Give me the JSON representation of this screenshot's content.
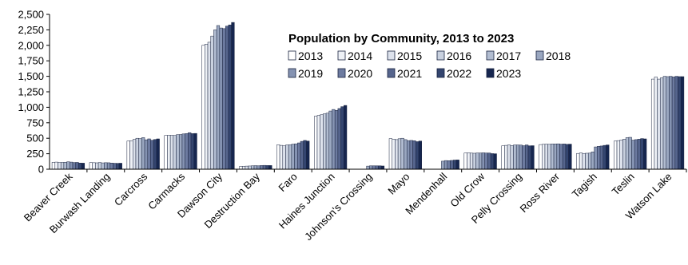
{
  "chart_data": {
    "type": "bar",
    "title": "Population by Community, 2013 to 2023",
    "xlabel": "",
    "ylabel": "",
    "ylim": [
      0,
      2500
    ],
    "yticks": [
      0,
      250,
      500,
      750,
      1000,
      1250,
      1500,
      1750,
      2000,
      2250,
      2500
    ],
    "ytick_labels": [
      "0",
      "250",
      "500",
      "750",
      "1,000",
      "1,250",
      "1,500",
      "1,750",
      "2,000",
      "2,250",
      "2,500"
    ],
    "grid": false,
    "legend_position": "top-right",
    "categories": [
      "Beaver Creek",
      "Burwash Landing",
      "Carcross",
      "Carmacks",
      "Dawson City",
      "Destruction Bay",
      "Faro",
      "Haines Junction",
      "Johnson's Crossing",
      "Mayo",
      "Mendenhall",
      "Old Crow",
      "Pelly Crossing",
      "Ross River",
      "Tagish",
      "Teslin",
      "Watson Lake"
    ],
    "series": [
      {
        "name": "2013",
        "color": "#ffffff",
        "values": [
          112,
          107,
          455,
          545,
          2000,
          45,
          395,
          855,
          null,
          495,
          null,
          262,
          378,
          398,
          255,
          455,
          1455
        ]
      },
      {
        "name": "2014",
        "color": "#eef1f6",
        "values": [
          115,
          105,
          460,
          550,
          2020,
          48,
          385,
          870,
          null,
          485,
          null,
          265,
          385,
          402,
          262,
          462,
          1488
        ]
      },
      {
        "name": "2015",
        "color": "#dde2ec",
        "values": [
          108,
          103,
          482,
          548,
          2050,
          50,
          378,
          880,
          null,
          478,
          null,
          260,
          392,
          405,
          255,
          470,
          1455
        ]
      },
      {
        "name": "2016",
        "color": "#c9d1df",
        "values": [
          110,
          108,
          500,
          545,
          2150,
          52,
          392,
          895,
          null,
          492,
          null,
          258,
          382,
          402,
          258,
          485,
          1475
        ]
      },
      {
        "name": "2017",
        "color": "#b2bdd1",
        "values": [
          112,
          102,
          495,
          558,
          2250,
          55,
          395,
          905,
          null,
          500,
          null,
          262,
          392,
          408,
          260,
          510,
          1500
        ]
      },
      {
        "name": "2018",
        "color": "#9aa7c0",
        "values": [
          120,
          105,
          510,
          560,
          2320,
          58,
          405,
          940,
          50,
          478,
          130,
          262,
          392,
          408,
          280,
          515,
          1495
        ]
      },
      {
        "name": "2019",
        "color": "#8593b2",
        "values": [
          115,
          104,
          475,
          570,
          2280,
          55,
          410,
          965,
          55,
          462,
          140,
          265,
          390,
          410,
          360,
          470,
          1500
        ]
      },
      {
        "name": "2020",
        "color": "#6d7ba0",
        "values": [
          108,
          100,
          490,
          575,
          2270,
          60,
          425,
          950,
          55,
          465,
          138,
          262,
          380,
          405,
          370,
          478,
          1490
        ]
      },
      {
        "name": "2021",
        "color": "#56658d",
        "values": [
          110,
          96,
          468,
          590,
          2310,
          62,
          450,
          980,
          55,
          460,
          142,
          262,
          392,
          408,
          375,
          485,
          1500
        ]
      },
      {
        "name": "2022",
        "color": "#34456f",
        "values": [
          100,
          95,
          480,
          575,
          2330,
          60,
          465,
          1010,
          55,
          445,
          148,
          252,
          378,
          402,
          385,
          495,
          1495
        ]
      },
      {
        "name": "2023",
        "color": "#16264f",
        "values": [
          98,
          97,
          490,
          578,
          2370,
          60,
          455,
          1030,
          52,
          455,
          150,
          250,
          380,
          405,
          392,
          490,
          1495
        ]
      }
    ]
  }
}
